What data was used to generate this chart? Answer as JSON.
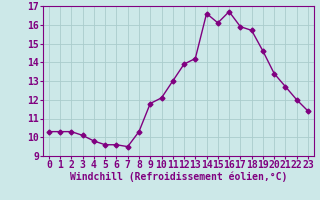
{
  "x": [
    0,
    1,
    2,
    3,
    4,
    5,
    6,
    7,
    8,
    9,
    10,
    11,
    12,
    13,
    14,
    15,
    16,
    17,
    18,
    19,
    20,
    21,
    22,
    23
  ],
  "y": [
    10.3,
    10.3,
    10.3,
    10.1,
    9.8,
    9.6,
    9.6,
    9.5,
    10.3,
    11.8,
    12.1,
    13.0,
    13.9,
    14.2,
    16.6,
    16.1,
    16.7,
    15.9,
    15.7,
    14.6,
    13.4,
    12.7,
    12.0,
    11.4
  ],
  "line_color": "#800080",
  "marker": "D",
  "markersize": 2.5,
  "linewidth": 1.0,
  "background_color": "#cce8e8",
  "grid_color": "#aacccc",
  "xlabel": "Windchill (Refroidissement éolien,°C)",
  "xlabel_fontsize": 7,
  "tick_fontsize": 7,
  "ylim": [
    9,
    17
  ],
  "xlim": [
    -0.5,
    23.5
  ],
  "yticks": [
    9,
    10,
    11,
    12,
    13,
    14,
    15,
    16,
    17
  ],
  "xticks": [
    0,
    1,
    2,
    3,
    4,
    5,
    6,
    7,
    8,
    9,
    10,
    11,
    12,
    13,
    14,
    15,
    16,
    17,
    18,
    19,
    20,
    21,
    22,
    23
  ]
}
